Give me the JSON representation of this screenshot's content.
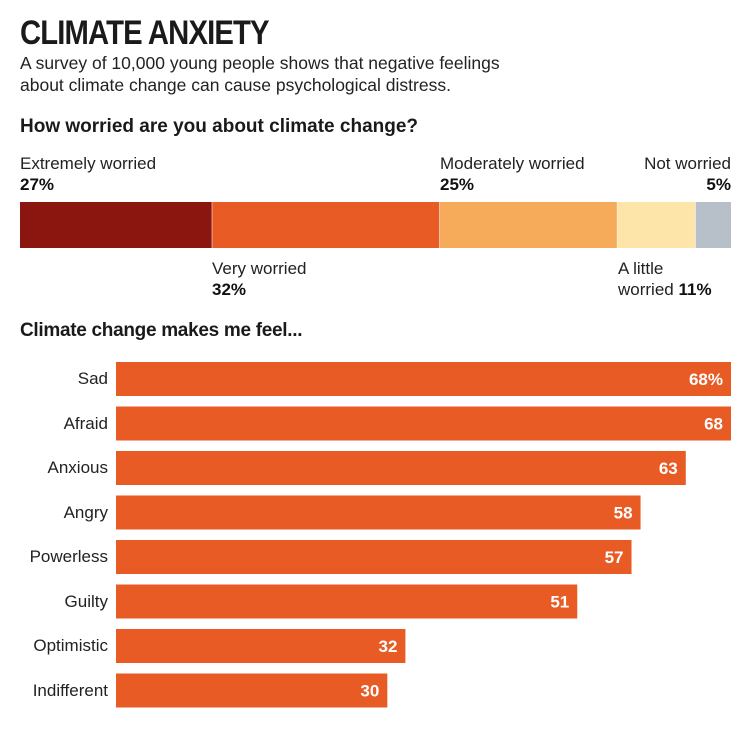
{
  "header": {
    "title": "CLIMATE ANXIETY",
    "subtitle_line1": "A survey of 10,000 young people shows that negative feelings",
    "subtitle_line2": "about climate change can cause psychological distress."
  },
  "chart_data": [
    {
      "type": "bar",
      "orientation": "horizontal-stacked",
      "title": "How worried are you about climate change?",
      "unit": "%",
      "categories": [
        "Extremely worried",
        "Very worried",
        "Moderately worried",
        "A little worried",
        "Not worried"
      ],
      "values": [
        27,
        32,
        25,
        11,
        5
      ],
      "value_labels": [
        "27%",
        "32%",
        "25%",
        "11%",
        "5%"
      ],
      "colors": [
        "#8b150f",
        "#e85b24",
        "#f5ab5a",
        "#fde4a8",
        "#b7c0c8"
      ],
      "label_lines": [
        {
          "line1": "Extremely worried",
          "value": "27%"
        },
        {
          "line1": "Very worried",
          "value": "32%"
        },
        {
          "line1": "Moderately worried",
          "value": "25%"
        },
        {
          "line1": "A little",
          "line2": "worried",
          "value": "11%"
        },
        {
          "line1": "Not worried",
          "value": "5%"
        }
      ]
    },
    {
      "type": "bar",
      "orientation": "horizontal",
      "title": "Climate change makes me feel...",
      "unit": "%",
      "categories": [
        "Sad",
        "Afraid",
        "Anxious",
        "Angry",
        "Powerless",
        "Guilty",
        "Optimistic",
        "Indifferent"
      ],
      "values": [
        68,
        68,
        63,
        58,
        57,
        51,
        32,
        30
      ],
      "value_labels": [
        "68%",
        "68",
        "63",
        "58",
        "57",
        "51",
        "32",
        "30"
      ],
      "xlim": [
        0,
        68
      ],
      "bar_color": "#e85b24",
      "grid": false
    }
  ]
}
